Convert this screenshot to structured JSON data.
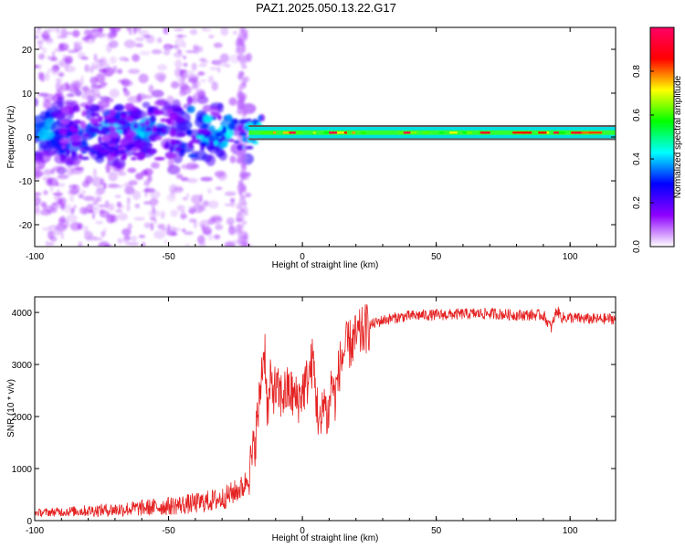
{
  "figure": {
    "title": "PAZ1.2025.050.13.22.G17"
  },
  "chart_data": [
    {
      "type": "heatmap",
      "xlabel": "Height of straight line (km)",
      "ylabel": "Frequency (Hz)",
      "xlim": [
        -100,
        117
      ],
      "ylim": [
        -25,
        25
      ],
      "x_ticks": [
        -100,
        -50,
        0,
        50,
        100
      ],
      "y_ticks": [
        -20,
        -10,
        0,
        10,
        20
      ],
      "colorbar": {
        "label": "Normalized spectral amplitude",
        "range": [
          0,
          1
        ],
        "ticks": [
          0,
          0.2,
          0.4,
          0.6,
          0.8
        ],
        "tick_labels": [
          "0.0",
          "0.2",
          "0.4",
          "0.6",
          "0.8"
        ],
        "colormap": [
          "#ffffff",
          "#8f00ff",
          "#0000ff",
          "#00ffff",
          "#00ff00",
          "#ffff00",
          "#ff0000",
          "#ff0066"
        ]
      },
      "features": {
        "noise_region_x": [
          -100,
          -20
        ],
        "carrier_band_x": [
          -20,
          117
        ],
        "carrier_frequency": 1,
        "carrier_width": 1.5
      }
    },
    {
      "type": "line",
      "xlabel": "Height of straight line (km)",
      "ylabel": "SNR (10 * v/v)",
      "xlim": [
        -100,
        117
      ],
      "ylim": [
        0,
        4300
      ],
      "x_ticks": [
        -100,
        -50,
        0,
        50,
        100
      ],
      "y_ticks": [
        0,
        1000,
        2000,
        3000,
        4000
      ],
      "color": "#e52222",
      "series": [
        {
          "x": [
            -100,
            -90,
            -80,
            -70,
            -60,
            -50,
            -40,
            -30,
            -25,
            -22,
            -20,
            -18,
            -16,
            -15,
            -14,
            -13,
            -12,
            -10,
            -8,
            -5,
            -2,
            0,
            2,
            4,
            5,
            6,
            7,
            8,
            9,
            10,
            11,
            12,
            14,
            16,
            20,
            25,
            30,
            35,
            40,
            45,
            50,
            60,
            70,
            80,
            90,
            93,
            95,
            97,
            100,
            105,
            110,
            117
          ],
          "y": [
            150,
            170,
            190,
            210,
            240,
            280,
            330,
            420,
            560,
            650,
            900,
            1400,
            2300,
            3000,
            3300,
            2000,
            2600,
            2500,
            2400,
            2500,
            2300,
            2500,
            2700,
            3100,
            2400,
            2000,
            1700,
            2500,
            2000,
            2100,
            2800,
            2300,
            3000,
            3300,
            3500,
            3750,
            3850,
            3900,
            3930,
            3950,
            3950,
            3970,
            3980,
            3950,
            3950,
            3700,
            4050,
            3900,
            3900,
            3880,
            3870,
            3880
          ]
        }
      ]
    }
  ]
}
